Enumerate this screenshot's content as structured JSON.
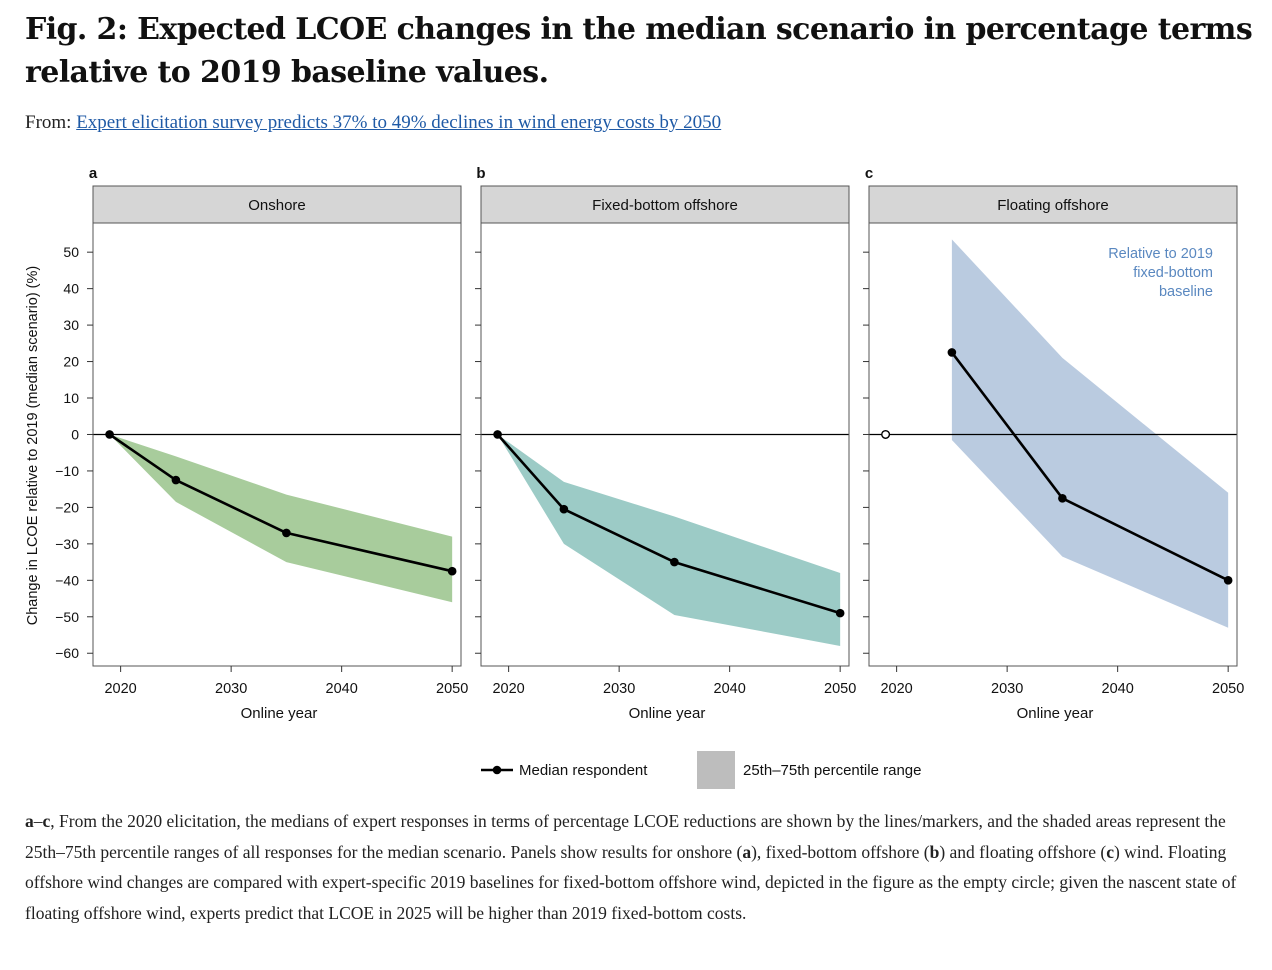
{
  "figure": {
    "title": "Fig. 2: Expected LCOE changes in the median scenario in percentage terms relative to 2019 baseline values.",
    "from_label": "From:",
    "from_link": "Expert elicitation survey predicts 37% to 49% declines in wind energy costs by 2050"
  },
  "caption": {
    "lead": "a",
    "dash": "–",
    "lead2": "c",
    "p1": ", From the 2020 elicitation, the medians of expert responses in terms of percentage LCOE reductions are shown by the lines/markers, and the shaded areas represent the 25th–75th percentile ranges of all responses for the median scenario. Panels show results for onshore (",
    "a": "a",
    "p2": "), fixed-bottom offshore (",
    "b": "b",
    "p3": ") and floating offshore (",
    "c": "c",
    "p4": ") wind. Floating offshore wind changes are compared with expert-specific 2019 baselines for fixed-bottom offshore wind, depicted in the figure as the empty circle; given the nascent state of floating offshore wind, experts predict that LCOE in 2025 will be higher than 2019 fixed-bottom costs."
  },
  "chart_data": {
    "type": "line",
    "ylabel": "Change in LCOE relative to 2019 (median scenario) (%)",
    "xlabel": "Online year",
    "xlim": [
      2017.5,
      2050.8
    ],
    "ylim": [
      -63.5,
      58
    ],
    "yticks": [
      50,
      40,
      30,
      20,
      10,
      0,
      -10,
      -20,
      -30,
      -40,
      -50,
      -60
    ],
    "xticks": [
      2020,
      2030,
      2040,
      2050
    ],
    "legend": {
      "position": "bottom",
      "median_label": "Median respondent",
      "range_label": "25th–75th percentile range",
      "range_color": "#bdbdbd"
    },
    "panels": [
      {
        "letter": "a",
        "title": "Onshore",
        "color": "#a8cc9c",
        "median": [
          [
            2019,
            0
          ],
          [
            2025,
            -12.5
          ],
          [
            2035,
            -27
          ],
          [
            2050,
            -37.5
          ]
        ],
        "p25": [
          [
            2019,
            0
          ],
          [
            2025,
            -18.5
          ],
          [
            2035,
            -35
          ],
          [
            2050,
            -46
          ]
        ],
        "p75": [
          [
            2019,
            0
          ],
          [
            2025,
            -6
          ],
          [
            2035,
            -16.5
          ],
          [
            2050,
            -28
          ]
        ],
        "annotation": ""
      },
      {
        "letter": "b",
        "title": "Fixed-bottom offshore",
        "color": "#9ccbc6",
        "median": [
          [
            2019,
            0
          ],
          [
            2025,
            -20.5
          ],
          [
            2035,
            -35
          ],
          [
            2050,
            -49
          ]
        ],
        "p25": [
          [
            2019,
            0
          ],
          [
            2025,
            -30
          ],
          [
            2035,
            -49.5
          ],
          [
            2050,
            -58
          ]
        ],
        "p75": [
          [
            2019,
            0
          ],
          [
            2025,
            -13
          ],
          [
            2035,
            -22.5
          ],
          [
            2050,
            -38
          ]
        ],
        "annotation": ""
      },
      {
        "letter": "c",
        "title": "Floating offshore",
        "color": "#bacbe0",
        "median": [
          [
            2025,
            22.5
          ],
          [
            2035,
            -17.5
          ],
          [
            2050,
            -40
          ]
        ],
        "p25": [
          [
            2025,
            -1.5
          ],
          [
            2035,
            -33.5
          ],
          [
            2050,
            -53
          ]
        ],
        "p75": [
          [
            2025,
            53.5
          ],
          [
            2035,
            21
          ],
          [
            2050,
            -16
          ]
        ],
        "baseline_point": [
          2019,
          0
        ],
        "annotation": "Relative to 2019 fixed-bottom baseline",
        "annotation_lines": [
          "Relative to 2019",
          "fixed-bottom",
          "baseline"
        ],
        "annotation_color": "#5a88c0"
      }
    ]
  }
}
